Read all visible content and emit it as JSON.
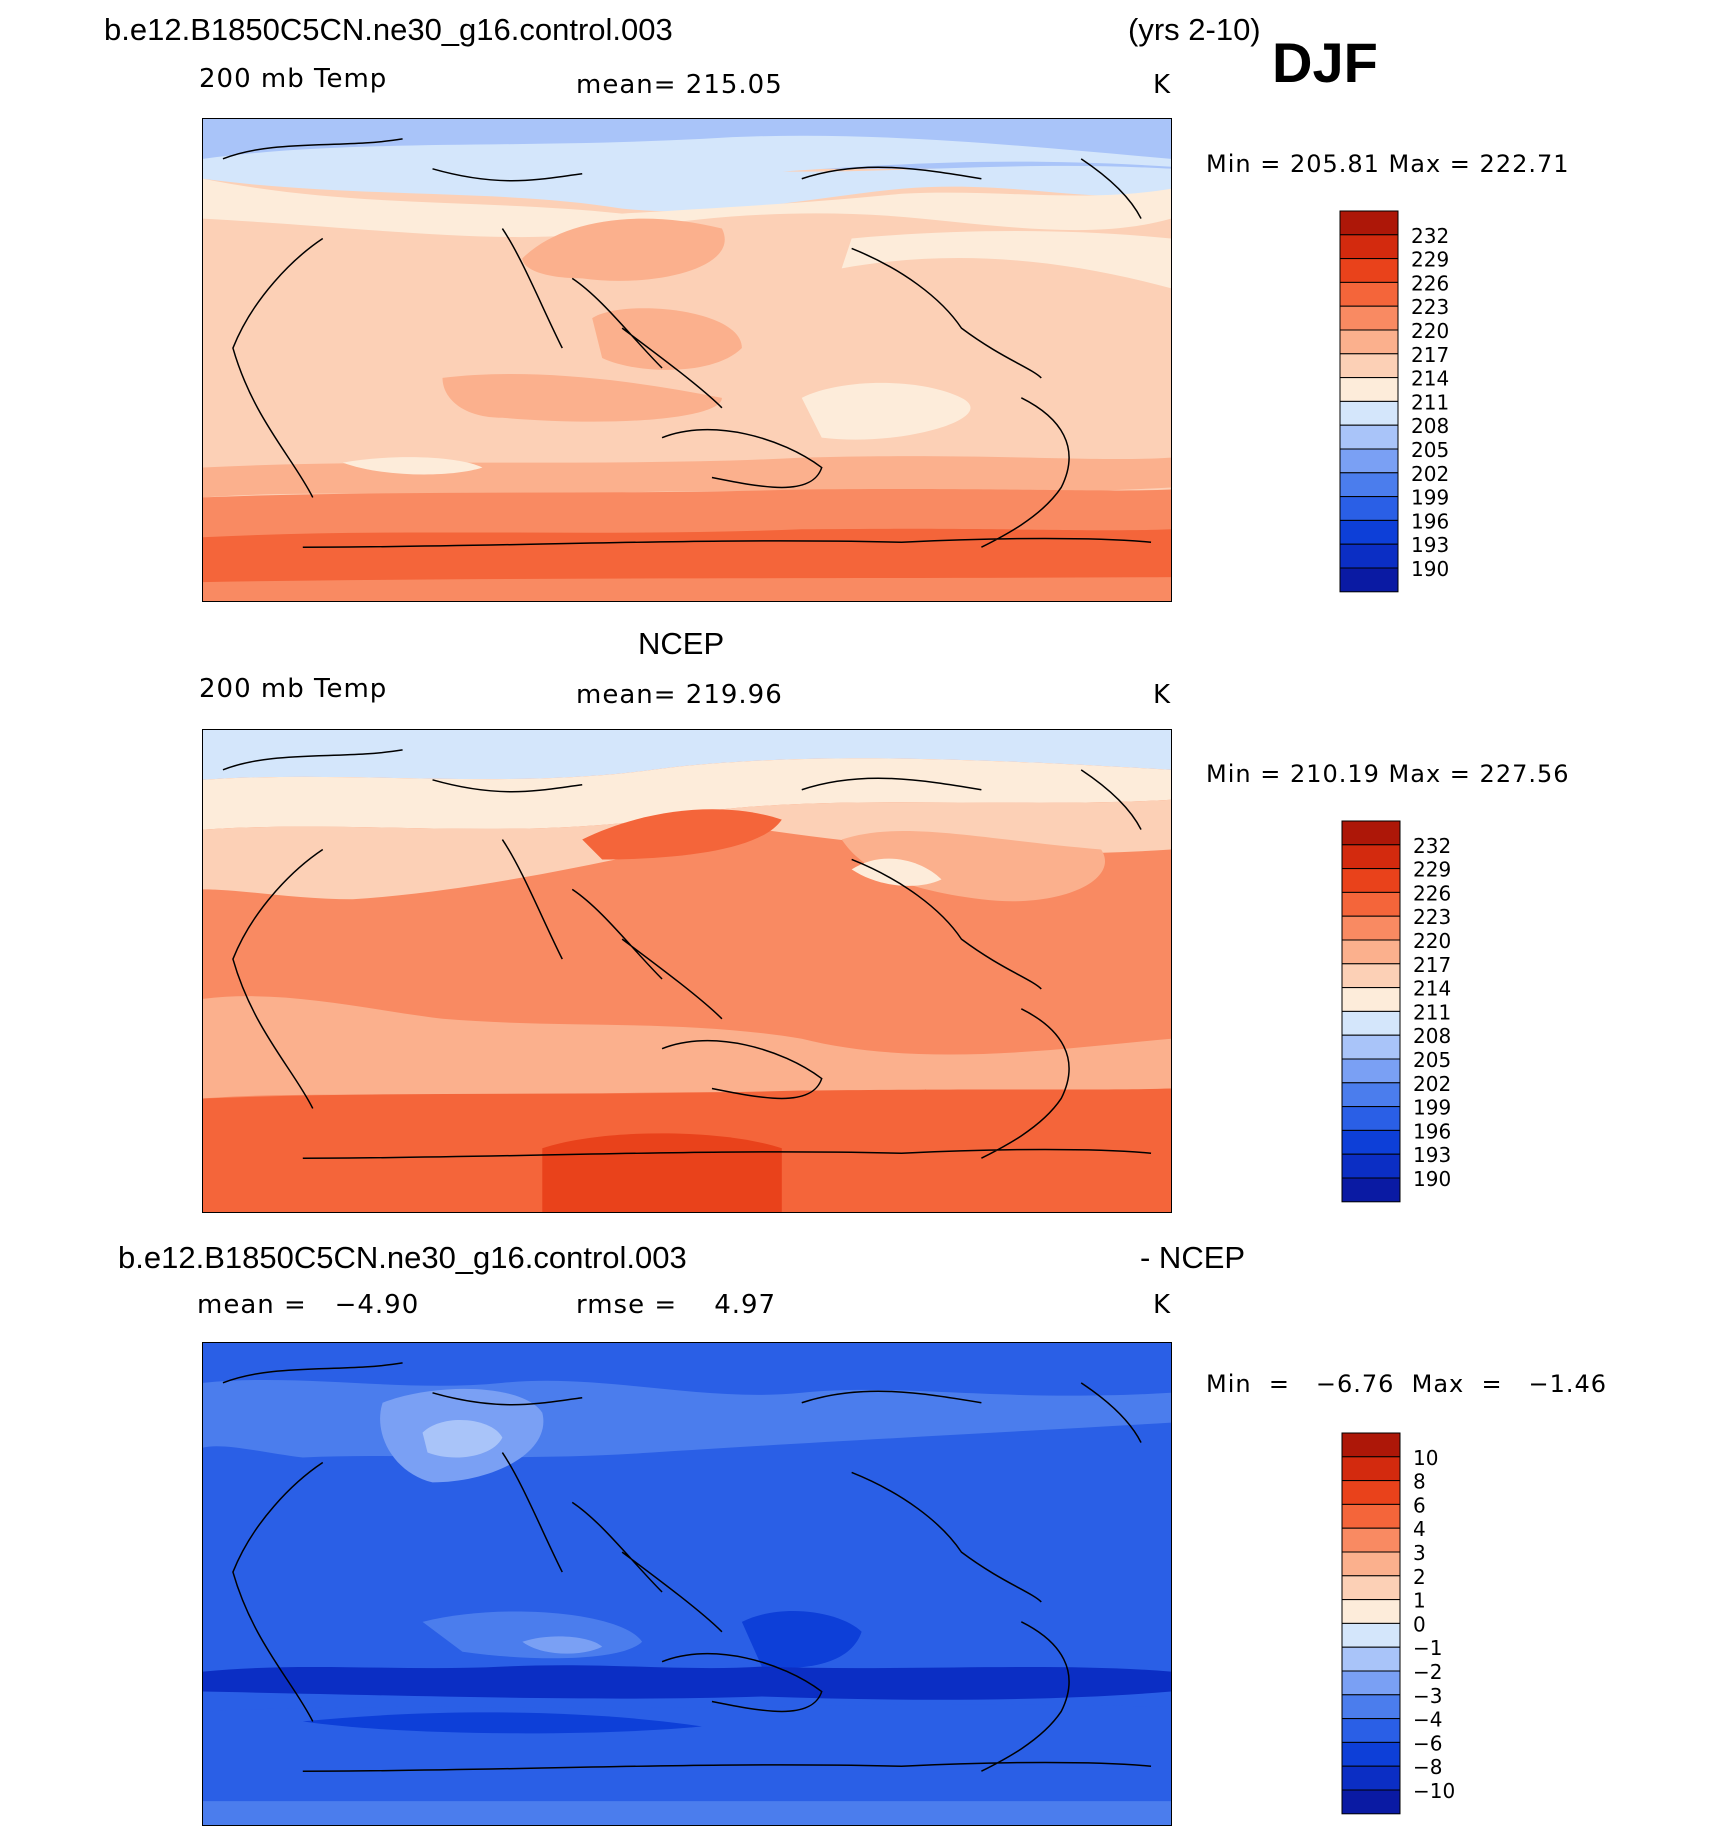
{
  "header": {
    "case_name": "b.e12.B1850C5CN.ne30_g16.control.003",
    "years": "(yrs 2-10)",
    "season": "DJF"
  },
  "colors": {
    "scale": [
      "#08006b",
      "#0a1aa3",
      "#0b2ec4",
      "#0d3fd8",
      "#2a5fe6",
      "#4b7ded",
      "#7aa0f4",
      "#a9c4f9",
      "#d4e6fb",
      "#fdecda",
      "#fcd0b6",
      "#fbb08d",
      "#f98a62",
      "#f4653a",
      "#e9421b",
      "#d32a0e",
      "#ad1708",
      "#8a0303"
    ]
  },
  "chart_data": [
    {
      "type": "heatmap",
      "panel": "model",
      "title": "b.e12.B1850C5CN.ne30_g16.control.003",
      "variable": "200 mb Temp",
      "mean_label": "mean= 215.05",
      "mean": 215.05,
      "units": "K",
      "min_max_label": "Min  =  205.81  Max  =  222.71",
      "min": 205.81,
      "max": 222.71,
      "contour_levels": [
        "232",
        "229",
        "226",
        "223",
        "220",
        "217",
        "214",
        "211",
        "208",
        "205",
        "202",
        "199",
        "196",
        "193",
        "190"
      ]
    },
    {
      "type": "heatmap",
      "panel": "observations",
      "title": "NCEP",
      "variable": "200 mb Temp",
      "mean_label": "mean= 219.96",
      "mean": 219.96,
      "units": "K",
      "min_max_label": "Min  =  210.19  Max  =  227.56",
      "min": 210.19,
      "max": 227.56,
      "contour_levels": [
        "232",
        "229",
        "226",
        "223",
        "220",
        "217",
        "214",
        "211",
        "208",
        "205",
        "202",
        "199",
        "196",
        "193",
        "190"
      ]
    },
    {
      "type": "heatmap",
      "panel": "difference",
      "title": "b.e12.B1850C5CN.ne30_g16.control.003",
      "title_suffix": "- NCEP",
      "mean_label": "mean =   −4.90",
      "mean": -4.9,
      "rmse_label": "rmse =    4.97",
      "rmse": 4.97,
      "units": "K",
      "min_max_label": "Min  =   −6.76  Max  =   −1.46",
      "min": -6.76,
      "max": -1.46,
      "contour_levels": [
        "10",
        "8",
        "6",
        "4",
        "3",
        "2",
        "1",
        "0",
        "−1",
        "−2",
        "−3",
        "−4",
        "−6",
        "−8",
        "−10"
      ]
    }
  ]
}
